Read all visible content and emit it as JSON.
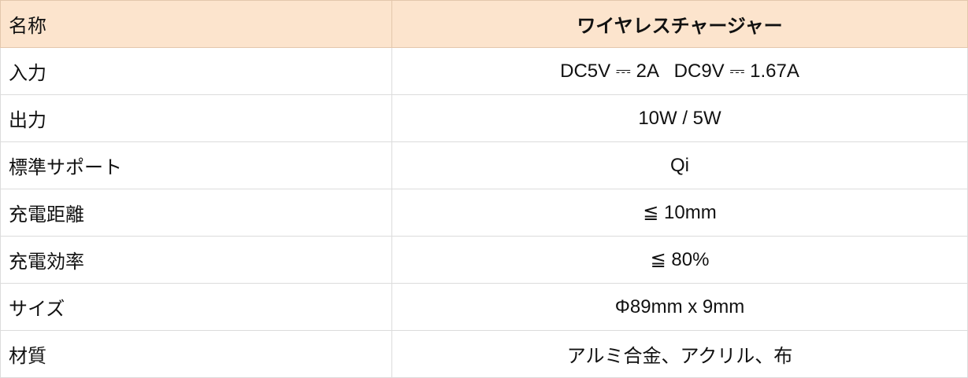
{
  "header": {
    "label": "名称",
    "value": "ワイヤレスチャージャー"
  },
  "rows": [
    {
      "label": "入力",
      "value": "DC5V ⎓ 2A   DC9V ⎓ 1.67A"
    },
    {
      "label": "出力",
      "value": "10W / 5W"
    },
    {
      "label": "標準サポート",
      "value": "Qi"
    },
    {
      "label": "充電距離",
      "value": "≦ 10mm"
    },
    {
      "label": "充電効率",
      "value": "≦ 80%"
    },
    {
      "label": "サイズ",
      "value": "Φ89mm x 9mm"
    },
    {
      "label": "材質",
      "value": "アルミ合金、アクリル、布"
    }
  ],
  "colors": {
    "header_bg": "#fce4cd",
    "border": "#dcdcdc"
  }
}
